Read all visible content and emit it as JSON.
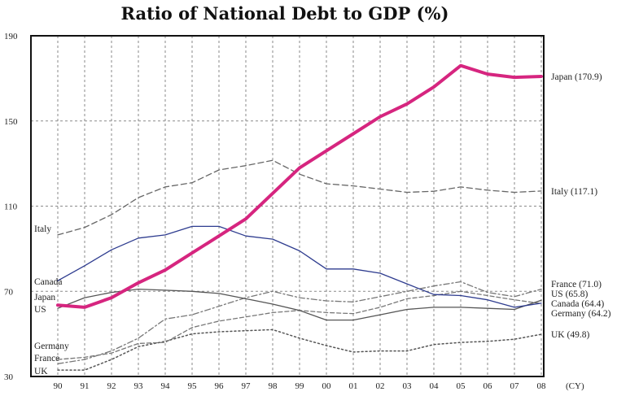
{
  "chart_data": {
    "type": "line",
    "title": "Ratio of National Debt to GDP (%)",
    "x_unit": "(CY)",
    "categories": [
      "90",
      "91",
      "92",
      "93",
      "94",
      "95",
      "96",
      "97",
      "98",
      "99",
      "00",
      "01",
      "02",
      "03",
      "04",
      "05",
      "06",
      "07",
      "08"
    ],
    "y_ticks": [
      "30",
      "70",
      "110",
      "150",
      "190"
    ],
    "ylim": [
      30,
      190
    ],
    "grid": true,
    "series": [
      {
        "name": "Japan",
        "end_label": "Japan (170.9)",
        "color": "#d6257f",
        "values": [
          63.5,
          62.5,
          67,
          74,
          80,
          88,
          96,
          104,
          116,
          128,
          136,
          144,
          152,
          158,
          166,
          176,
          172,
          170.5,
          170.9
        ]
      },
      {
        "name": "Italy",
        "end_label": "Italy (117.1)",
        "color": "#666666",
        "values": [
          96.5,
          100,
          106,
          114,
          119,
          121,
          127,
          129,
          131.5,
          125,
          120.5,
          119.5,
          118,
          116.5,
          117,
          119,
          117.5,
          116.5,
          117.1
        ]
      },
      {
        "name": "Canada",
        "end_label": "Canada (64.4)",
        "color": "#2e3c8f",
        "values": [
          75,
          82,
          89.5,
          95,
          96.5,
          100.5,
          100.5,
          96,
          94.5,
          89,
          80.5,
          80.5,
          78.5,
          73.5,
          68.5,
          68,
          66,
          62.5,
          64.4
        ]
      },
      {
        "name": "US",
        "end_label": "US (65.8)",
        "color": "#555555",
        "values": [
          62,
          67,
          69.5,
          71,
          70.5,
          70,
          69,
          66.5,
          64,
          61,
          56.5,
          56.5,
          59,
          61.5,
          62.5,
          62.5,
          62,
          61.5,
          65.8
        ]
      },
      {
        "name": "France",
        "end_label": "France (71.0)",
        "color": "#777777",
        "values": [
          36,
          38,
          42,
          48,
          57,
          59,
          63,
          67,
          70,
          67,
          65.5,
          65,
          67.5,
          70,
          72.5,
          74.5,
          69.5,
          67.5,
          71
        ]
      },
      {
        "name": "Germany",
        "end_label": "Germany (64.2)",
        "color": "#777777",
        "values": [
          38,
          39,
          41,
          45.5,
          46,
          53,
          56,
          58,
          60,
          61,
          60,
          59.5,
          62.5,
          66.5,
          68,
          70,
          68,
          66,
          64.2
        ]
      },
      {
        "name": "UK",
        "end_label": "UK (49.8)",
        "color": "#555555",
        "values": [
          33,
          33,
          38,
          44,
          46.5,
          50,
          51,
          51.5,
          52,
          48,
          44.5,
          41.5,
          42,
          42,
          45,
          46,
          46.5,
          47.5,
          49.8
        ]
      }
    ],
    "left_labels": [
      "Italy",
      "Canada",
      "Japan",
      "US",
      "Germany",
      "France",
      "UK"
    ]
  }
}
